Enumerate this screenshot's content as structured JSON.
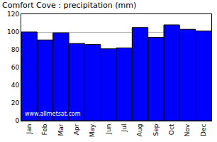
{
  "chart_data": {
    "type": "bar",
    "title": "Comfort Cove : precipitation (mm)",
    "categories": [
      "Jan",
      "Feb",
      "Mar",
      "Apr",
      "May",
      "Jun",
      "Jul",
      "Aug",
      "Sep",
      "Oct",
      "Nov",
      "Dec"
    ],
    "values": [
      100,
      91,
      99,
      87,
      86,
      81,
      82,
      105,
      94,
      108,
      103,
      101
    ],
    "color": "#0000ff",
    "ylim": [
      0,
      120
    ],
    "yticks": [
      0,
      20,
      40,
      60,
      80,
      100,
      120
    ],
    "grid": true,
    "annotations": [
      "www.allmetsat.com"
    ]
  }
}
